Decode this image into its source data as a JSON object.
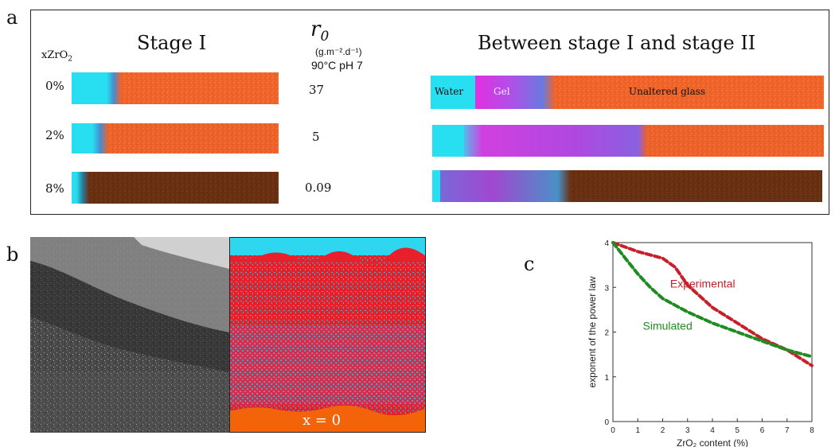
{
  "panel_a": {
    "letter": "a",
    "xzro2_label_main": "xZrO",
    "xzro2_label_sub": "2",
    "stage1_title": "Stage I",
    "r0_symbol": "r",
    "r0_sub": "0",
    "r0_units": "(g.m⁻².d⁻¹)",
    "r0_conditions": "90°C pH 7",
    "stage_between_title": "Between stage I and stage II",
    "rows": [
      {
        "label": "0%",
        "r0": "37"
      },
      {
        "label": "2%",
        "r0": "5"
      },
      {
        "label": "8%",
        "r0": "0.09"
      }
    ],
    "segment_labels": {
      "water": "Water",
      "gel": "Gel",
      "glass": "Unaltered glass"
    },
    "colors": {
      "water": "#27dff0",
      "gel": "#c040e8",
      "glass_orange": "#f0642a",
      "glass_brown": "#6a3012"
    }
  },
  "panel_b": {
    "letter": "b",
    "x_label": "x = 0",
    "colors": {
      "top": "#2ed6f0",
      "red": "#e8202c",
      "cyan": "#3fb2cc",
      "bottom": "#f2630a"
    }
  },
  "panel_c": {
    "letter": "c",
    "chart_data": {
      "type": "line",
      "xlabel": "ZrO₂ content (%)",
      "ylabel": "exponent of the power law",
      "xlim": [
        0,
        8
      ],
      "ylim": [
        0,
        4
      ],
      "xticks": [
        "0",
        "1",
        "2",
        "3",
        "4",
        "5",
        "6",
        "7",
        "8"
      ],
      "yticks": [
        "0",
        "1",
        "2",
        "3",
        "4"
      ],
      "grid": false,
      "series": [
        {
          "name": "Experimental",
          "color": "#c8202a",
          "x": [
            0,
            1,
            2,
            2.5,
            3,
            3.5,
            4,
            5,
            6,
            7,
            8
          ],
          "y": [
            4.0,
            3.8,
            3.65,
            3.45,
            3.05,
            2.8,
            2.55,
            2.2,
            1.85,
            1.6,
            1.25
          ]
        },
        {
          "name": "Simulated",
          "color": "#1e8c20",
          "x": [
            0,
            0.5,
            1,
            1.5,
            2,
            3,
            4,
            5,
            6,
            7,
            8
          ],
          "y": [
            4.0,
            3.65,
            3.3,
            3.0,
            2.75,
            2.45,
            2.2,
            2.0,
            1.8,
            1.6,
            1.45
          ]
        }
      ]
    }
  }
}
